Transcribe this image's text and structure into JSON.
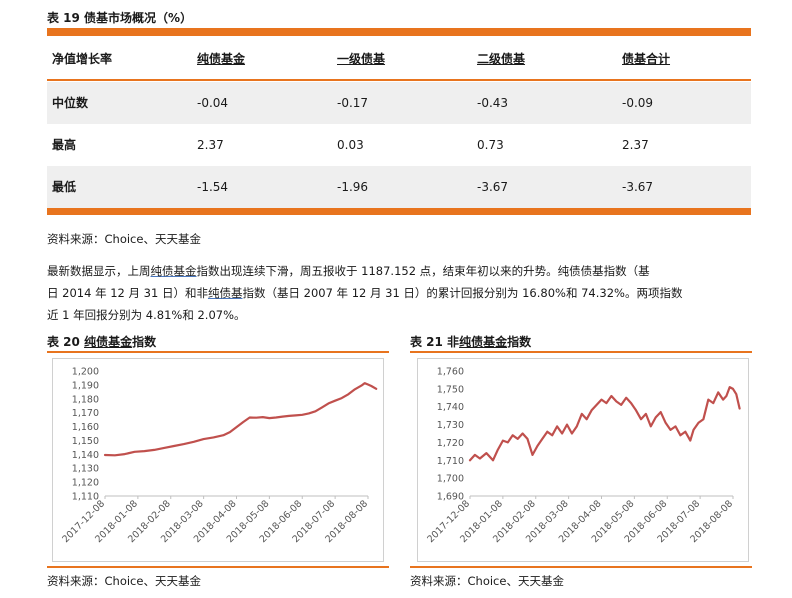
{
  "table19": {
    "title": "表 19  债基市场概况（%）",
    "headers": [
      "净值增长率",
      "纯债基金",
      "一级债基",
      "二级债基",
      "债基合计"
    ],
    "rows": [
      {
        "label": "中位数",
        "values": [
          "-0.04",
          "-0.17",
          "-0.43",
          "-0.09"
        ]
      },
      {
        "label": "最高",
        "values": [
          "2.37",
          "0.03",
          "0.73",
          "2.37"
        ]
      },
      {
        "label": "最低",
        "values": [
          "-1.54",
          "-1.96",
          "-3.67",
          "-3.67"
        ]
      }
    ],
    "source": "资料来源：Choice、天天基金"
  },
  "paragraph": {
    "line1_a": "最新数据显示，上周",
    "line1_link": "纯债基金",
    "line1_b": "指数出现连续下滑，周五报收于 1187.152 点，结束年初以来的升势。纯债债基指数（基",
    "line2_a": "日 2014 年 12 月 31 日）和非",
    "line2_link": "纯债基",
    "line2_b": "指数（基日 2007 年 12 月 31 日）的累计回报分别为 16.80%和 74.32%。两项指数",
    "line3": "近 1 年回报分别为 4.81%和 2.07%。"
  },
  "charts": [
    {
      "title_prefix": "表 20  ",
      "title_link": "纯债基金",
      "title_suffix": "指数",
      "source": "资料来源：Choice、天天基金"
    },
    {
      "title_prefix": "表 21  非",
      "title_link": "纯债基金",
      "title_suffix": "指数",
      "source": "资料来源：Choice、天天基金"
    }
  ],
  "chart_data": [
    {
      "type": "line",
      "title": "",
      "xlabel": "",
      "ylabel": "",
      "ylim": [
        1110,
        1200
      ],
      "yticks": [
        "1,110",
        "1,120",
        "1,130",
        "1,140",
        "1,150",
        "1,160",
        "1,170",
        "1,180",
        "1,190",
        "1,200"
      ],
      "xticks": [
        "2017-12-08",
        "2018-01-08",
        "2018-02-08",
        "2018-03-08",
        "2018-04-08",
        "2018-05-08",
        "2018-06-08",
        "2018-07-08",
        "2018-08-08"
      ],
      "grid": false,
      "color": "#C0504D",
      "series": [
        {
          "values": [
            [
              0,
              1139.5
            ],
            [
              0.3,
              1139.3
            ],
            [
              0.6,
              1140.2
            ],
            [
              0.9,
              1141.8
            ],
            [
              1.2,
              1142.3
            ],
            [
              1.5,
              1143.2
            ],
            [
              1.8,
              1144.6
            ],
            [
              2.1,
              1146.0
            ],
            [
              2.4,
              1147.4
            ],
            [
              2.7,
              1149.0
            ],
            [
              3.0,
              1151.0
            ],
            [
              3.3,
              1152.2
            ],
            [
              3.6,
              1153.8
            ],
            [
              3.8,
              1156.0
            ],
            [
              4.0,
              1159.6
            ],
            [
              4.2,
              1163.2
            ],
            [
              4.4,
              1166.5
            ],
            [
              4.6,
              1166.4
            ],
            [
              4.8,
              1166.8
            ],
            [
              5.0,
              1166.1
            ],
            [
              5.2,
              1166.5
            ],
            [
              5.4,
              1167.2
            ],
            [
              5.6,
              1167.7
            ],
            [
              5.8,
              1168.0
            ],
            [
              6.0,
              1168.5
            ],
            [
              6.2,
              1169.5
            ],
            [
              6.4,
              1171.0
            ],
            [
              6.6,
              1173.8
            ],
            [
              6.8,
              1176.7
            ],
            [
              7.0,
              1178.6
            ],
            [
              7.2,
              1180.5
            ],
            [
              7.4,
              1183.2
            ],
            [
              7.6,
              1186.8
            ],
            [
              7.8,
              1189.5
            ],
            [
              7.9,
              1191.2
            ],
            [
              8.0,
              1190.3
            ],
            [
              8.1,
              1189.2
            ],
            [
              8.25,
              1187.2
            ]
          ]
        }
      ]
    },
    {
      "type": "line",
      "title": "",
      "xlabel": "",
      "ylabel": "",
      "ylim": [
        1690,
        1760
      ],
      "yticks": [
        "1,690",
        "1,700",
        "1,710",
        "1,720",
        "1,730",
        "1,740",
        "1,750",
        "1,760"
      ],
      "xticks": [
        "2017-12-08",
        "2018-01-08",
        "2018-02-08",
        "2018-03-08",
        "2018-04-08",
        "2018-05-08",
        "2018-06-08",
        "2018-07-08",
        "2018-08-08"
      ],
      "grid": false,
      "color": "#C0504D",
      "series": [
        {
          "values": [
            [
              0,
              1710
            ],
            [
              0.15,
              1713
            ],
            [
              0.3,
              1711
            ],
            [
              0.5,
              1714
            ],
            [
              0.7,
              1710
            ],
            [
              0.85,
              1716
            ],
            [
              1.0,
              1721
            ],
            [
              1.15,
              1720
            ],
            [
              1.3,
              1724
            ],
            [
              1.45,
              1722
            ],
            [
              1.6,
              1725
            ],
            [
              1.75,
              1722
            ],
            [
              1.9,
              1713
            ],
            [
              2.05,
              1718
            ],
            [
              2.2,
              1722
            ],
            [
              2.35,
              1726
            ],
            [
              2.5,
              1724
            ],
            [
              2.65,
              1729
            ],
            [
              2.8,
              1725
            ],
            [
              2.95,
              1730
            ],
            [
              3.1,
              1725
            ],
            [
              3.25,
              1729
            ],
            [
              3.4,
              1736
            ],
            [
              3.55,
              1733
            ],
            [
              3.7,
              1738
            ],
            [
              3.85,
              1741
            ],
            [
              4.0,
              1744
            ],
            [
              4.15,
              1742
            ],
            [
              4.3,
              1746
            ],
            [
              4.45,
              1743
            ],
            [
              4.6,
              1741
            ],
            [
              4.75,
              1745
            ],
            [
              4.9,
              1742
            ],
            [
              5.05,
              1738
            ],
            [
              5.2,
              1733
            ],
            [
              5.35,
              1736
            ],
            [
              5.5,
              1729
            ],
            [
              5.65,
              1734
            ],
            [
              5.8,
              1737
            ],
            [
              5.95,
              1731
            ],
            [
              6.1,
              1727
            ],
            [
              6.25,
              1729
            ],
            [
              6.4,
              1724
            ],
            [
              6.55,
              1726
            ],
            [
              6.7,
              1721
            ],
            [
              6.8,
              1727
            ],
            [
              6.95,
              1731
            ],
            [
              7.1,
              1733
            ],
            [
              7.25,
              1744
            ],
            [
              7.4,
              1742
            ],
            [
              7.55,
              1748
            ],
            [
              7.7,
              1744
            ],
            [
              7.8,
              1746
            ],
            [
              7.9,
              1751
            ],
            [
              8.0,
              1750
            ],
            [
              8.1,
              1747
            ],
            [
              8.2,
              1739
            ]
          ]
        }
      ]
    }
  ]
}
